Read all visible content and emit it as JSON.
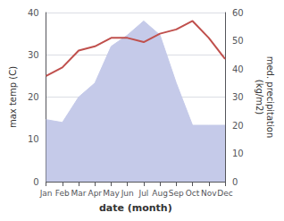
{
  "chart_data": {
    "type": "line",
    "categories": [
      "Jan",
      "Feb",
      "Mar",
      "Apr",
      "May",
      "Jun",
      "Jul",
      "Aug",
      "Sep",
      "Oct",
      "Nov",
      "Dec"
    ],
    "series": [
      {
        "type": "area",
        "axis": "y2",
        "color": "#c5cae9",
        "values": [
          22,
          21,
          30,
          35,
          48,
          52,
          57,
          52,
          35,
          20,
          20,
          20
        ]
      },
      {
        "type": "line",
        "color": "#c0504d",
        "values": [
          25,
          27,
          31,
          32,
          34,
          34,
          33,
          35,
          36,
          38,
          34,
          29
        ]
      }
    ],
    "xlabel": "date (month)",
    "ylabel": "max temp (C)",
    "y2label": "med. precipitation\n(kg/m2)",
    "ylim": [
      0,
      40
    ],
    "yticks": [
      0,
      10,
      20,
      30,
      40
    ],
    "y2lim": [
      0,
      60
    ],
    "y2ticks": [
      0,
      10,
      20,
      30,
      40,
      50,
      60
    ],
    "grid": true
  }
}
